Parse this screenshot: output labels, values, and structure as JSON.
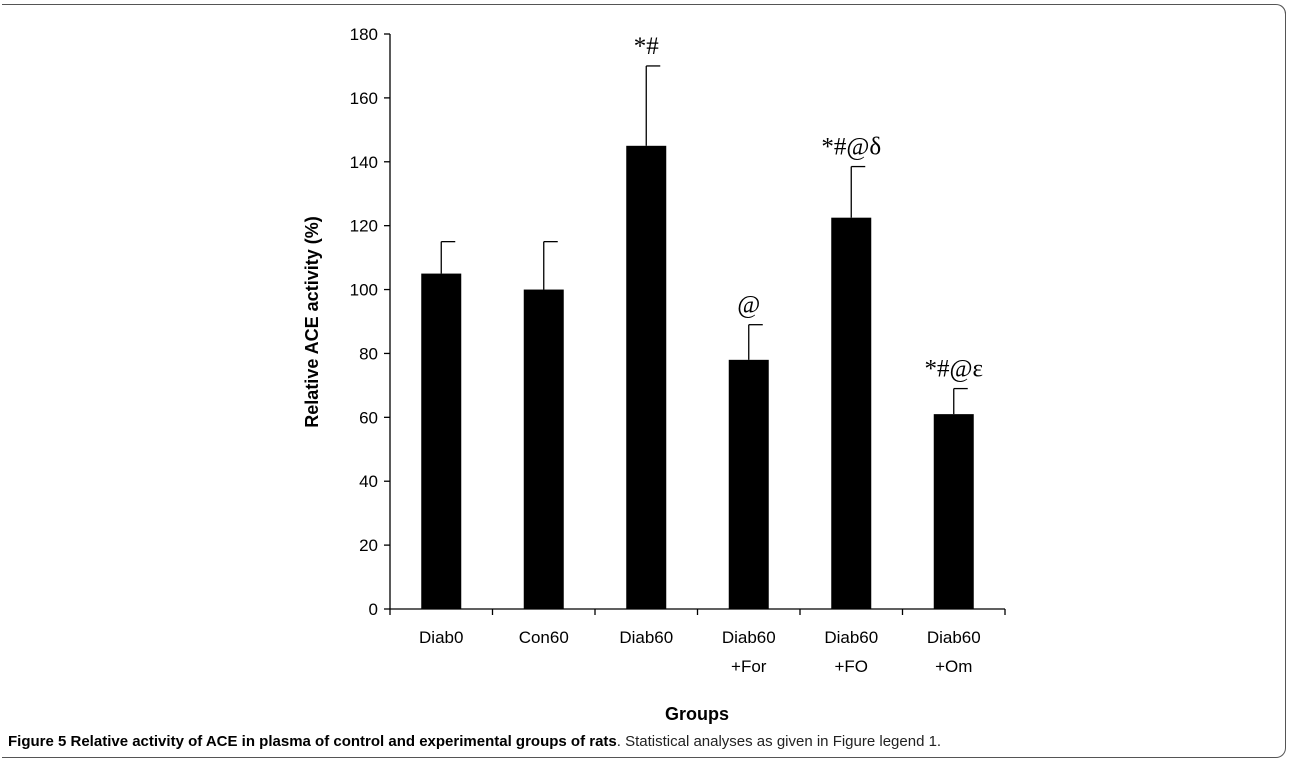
{
  "chart_data": {
    "type": "bar",
    "categories": [
      [
        "Diab0"
      ],
      [
        "Con60"
      ],
      [
        "Diab60"
      ],
      [
        "Diab60",
        "+For"
      ],
      [
        "Diab60",
        "+FO"
      ],
      [
        "Diab60",
        "+Om"
      ]
    ],
    "values": [
      105,
      100,
      145,
      78,
      122.5,
      61
    ],
    "errors": [
      10,
      15,
      25,
      11,
      16,
      8
    ],
    "annotations": [
      "",
      "",
      "*#",
      "@",
      "*#@δ",
      "*#@ε"
    ],
    "ylabel": "Relative ACE activity (%)",
    "xlabel": "Groups",
    "ylim": [
      0,
      180
    ],
    "yticks": [
      0,
      20,
      40,
      60,
      80,
      100,
      120,
      140,
      160,
      180
    ],
    "grid": false,
    "bar_color": "#000000"
  },
  "caption": {
    "bold": "Figure 5 Relative activity of ACE in plasma of control and experimental groups of rats",
    "rest": ". Statistical analyses as given in Figure legend 1."
  }
}
